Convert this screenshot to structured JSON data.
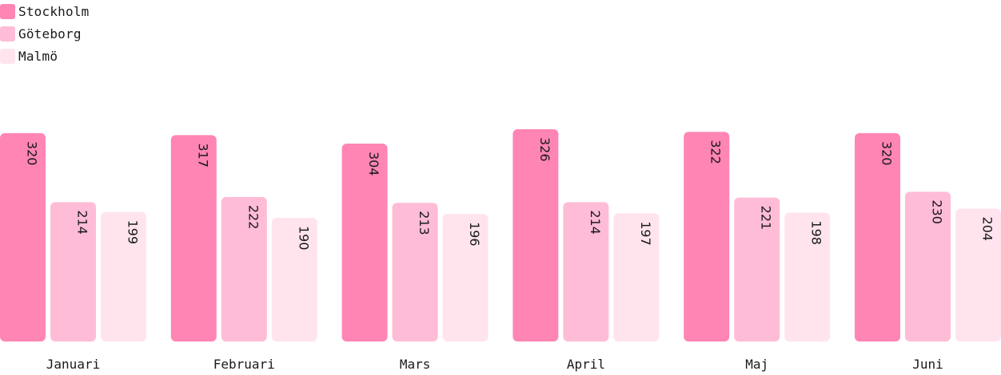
{
  "chart_data": {
    "type": "bar",
    "categories": [
      "Januari",
      "Februari",
      "Mars",
      "April",
      "Maj",
      "Juni"
    ],
    "series": [
      {
        "name": "Stockholm",
        "color": "#ff85b4",
        "values": [
          320,
          317,
          304,
          326,
          322,
          320
        ]
      },
      {
        "name": "Göteborg",
        "color": "#ffbcd7",
        "values": [
          214,
          222,
          213,
          214,
          221,
          230
        ]
      },
      {
        "name": "Malmö",
        "color": "#ffe4ee",
        "values": [
          199,
          190,
          196,
          197,
          198,
          204
        ]
      }
    ],
    "ylim": [
      0,
      326
    ],
    "grid": false,
    "legend": "top-left",
    "data_labels": "rotated inside bar top"
  }
}
